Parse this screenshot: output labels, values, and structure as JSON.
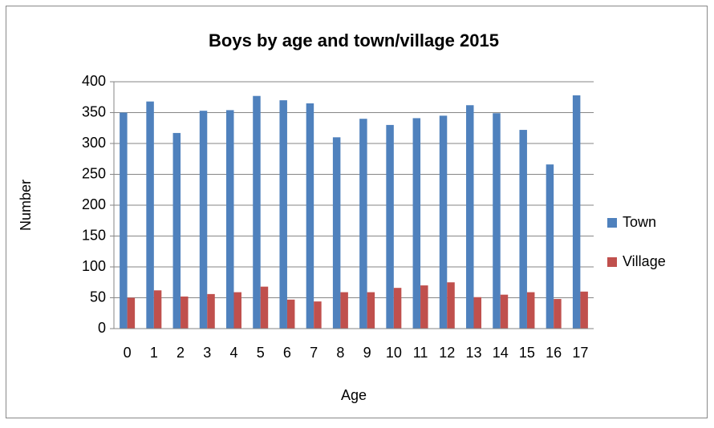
{
  "chart_data": {
    "type": "bar",
    "title": "Boys by age and town/village 2015",
    "x_label": "Age",
    "y_label": "Number",
    "categories": [
      "0",
      "1",
      "2",
      "3",
      "4",
      "5",
      "6",
      "7",
      "8",
      "9",
      "10",
      "11",
      "12",
      "13",
      "14",
      "15",
      "16",
      "17"
    ],
    "series": [
      {
        "name": "Town",
        "color": "#4f81bd",
        "values": [
          350,
          368,
          317,
          353,
          354,
          377,
          370,
          365,
          310,
          340,
          330,
          341,
          345,
          362,
          349,
          322,
          266,
          378
        ]
      },
      {
        "name": "Village",
        "color": "#c0504d",
        "values": [
          50,
          62,
          52,
          56,
          59,
          68,
          47,
          44,
          59,
          59,
          66,
          70,
          75,
          51,
          55,
          59,
          48,
          60
        ]
      }
    ],
    "ylim": [
      0,
      400
    ],
    "yticks": [
      0,
      50,
      100,
      150,
      200,
      250,
      300,
      350,
      400
    ],
    "grid": true,
    "legend": "right"
  }
}
